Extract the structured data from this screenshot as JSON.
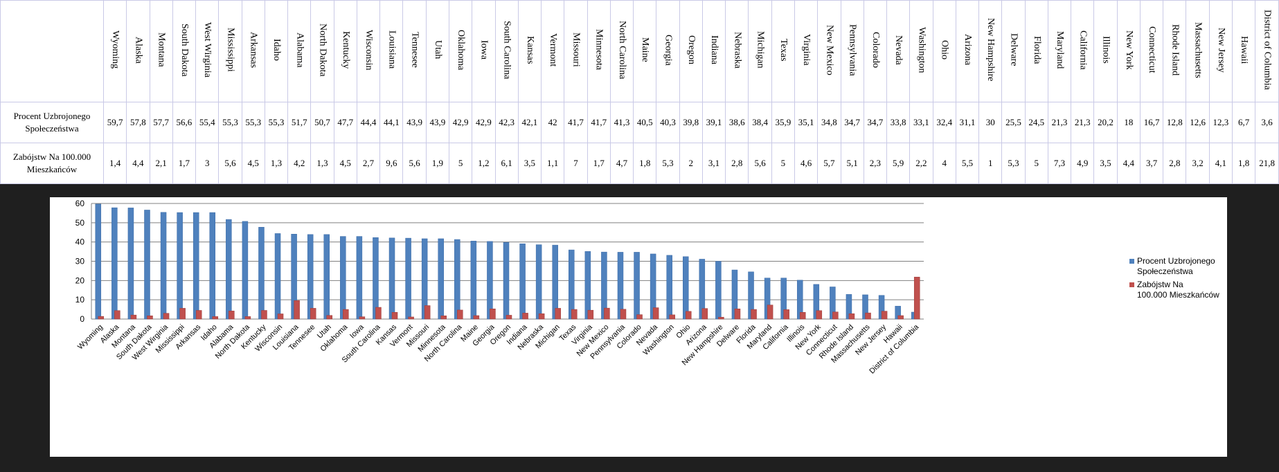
{
  "table": {
    "row1_label": "Procent Uzbrojonego Społeczeństwa",
    "row2_label": "Zabójstw Na 100.000 Mieszkańców"
  },
  "chart_data": {
    "type": "bar",
    "title": "",
    "xlabel": "",
    "ylabel": "",
    "ylim": [
      0,
      60
    ],
    "yticks": [
      0,
      10,
      20,
      30,
      40,
      50,
      60
    ],
    "grid": true,
    "legend_position": "right",
    "categories": [
      "Wyoming",
      "Alaska",
      "Montana",
      "South Dakota",
      "West Wirginia",
      "Mississippi",
      "Arkansas",
      "Idaho",
      "Alabama",
      "North Dakota",
      "Kentucky",
      "Wisconsin",
      "Louisiana",
      "Tennesee",
      "Utah",
      "Oklahoma",
      "Iowa",
      "South Carolina",
      "Kansas",
      "Vermont",
      "Missouri",
      "Minnesota",
      "North Carolina",
      "Maine",
      "Georgia",
      "Oregon",
      "Indiana",
      "Nebraska",
      "Michigan",
      "Texas",
      "Virginia",
      "New Mexico",
      "Pennsylvania",
      "Colorado",
      "Nevada",
      "Washington",
      "Ohio",
      "Arizona",
      "New Hampshire",
      "Delware",
      "Florida",
      "Maryland",
      "California",
      "Illinois",
      "New York",
      "Connecticut",
      "Rhode Island",
      "Massachusetts",
      "New Jersey",
      "Hawaii",
      "District of Columbia"
    ],
    "series": [
      {
        "name": "Procent Uzbrojonego Społeczeństwa",
        "color": "#4f81bd",
        "values": [
          59.7,
          57.8,
          57.7,
          56.6,
          55.4,
          55.3,
          55.3,
          55.3,
          51.7,
          50.7,
          47.7,
          44.4,
          44.1,
          43.9,
          43.9,
          42.9,
          42.9,
          42.3,
          42.1,
          42,
          41.7,
          41.7,
          41.3,
          40.5,
          40.3,
          39.8,
          39.1,
          38.6,
          38.4,
          35.9,
          35.1,
          34.8,
          34.7,
          34.7,
          33.8,
          33.1,
          32.4,
          31.1,
          30,
          25.5,
          24.5,
          21.3,
          21.3,
          20.2,
          18,
          16.7,
          12.8,
          12.6,
          12.3,
          6.7,
          3.6
        ],
        "labels": [
          "59,7",
          "57,8",
          "57,7",
          "56,6",
          "55,4",
          "55,3",
          "55,3",
          "55,3",
          "51,7",
          "50,7",
          "47,7",
          "44,4",
          "44,1",
          "43,9",
          "43,9",
          "42,9",
          "42,9",
          "42,3",
          "42,1",
          "42",
          "41,7",
          "41,7",
          "41,3",
          "40,5",
          "40,3",
          "39,8",
          "39,1",
          "38,6",
          "38,4",
          "35,9",
          "35,1",
          "34,8",
          "34,7",
          "34,7",
          "33,8",
          "33,1",
          "32,4",
          "31,1",
          "30",
          "25,5",
          "24,5",
          "21,3",
          "21,3",
          "20,2",
          "18",
          "16,7",
          "12,8",
          "12,6",
          "12,3",
          "6,7",
          "3,6"
        ]
      },
      {
        "name": "Zabójstw Na 100.000 Mieszkańców",
        "color": "#c0504d",
        "values": [
          1.4,
          4.4,
          2.1,
          1.7,
          3,
          5.6,
          4.5,
          1.3,
          4.2,
          1.3,
          4.5,
          2.7,
          9.6,
          5.6,
          1.9,
          5,
          1.2,
          6.1,
          3.5,
          1.1,
          7,
          1.7,
          4.7,
          1.8,
          5.3,
          2,
          3.1,
          2.8,
          5.6,
          5,
          4.6,
          5.7,
          5.1,
          2.3,
          5.9,
          2.2,
          4,
          5.5,
          1,
          5.3,
          5,
          7.3,
          4.9,
          3.5,
          4.4,
          3.7,
          2.8,
          3.2,
          4.1,
          1.8,
          21.8
        ],
        "labels": [
          "1,4",
          "4,4",
          "2,1",
          "1,7",
          "3",
          "5,6",
          "4,5",
          "1,3",
          "4,2",
          "1,3",
          "4,5",
          "2,7",
          "9,6",
          "5,6",
          "1,9",
          "5",
          "1,2",
          "6,1",
          "3,5",
          "1,1",
          "7",
          "1,7",
          "4,7",
          "1,8",
          "5,3",
          "2",
          "3,1",
          "2,8",
          "5,6",
          "5",
          "4,6",
          "5,7",
          "5,1",
          "2,3",
          "5,9",
          "2,2",
          "4",
          "5,5",
          "1",
          "5,3",
          "5",
          "7,3",
          "4,9",
          "3,5",
          "4,4",
          "3,7",
          "2,8",
          "3,2",
          "4,1",
          "1,8",
          "21,8"
        ]
      }
    ]
  }
}
